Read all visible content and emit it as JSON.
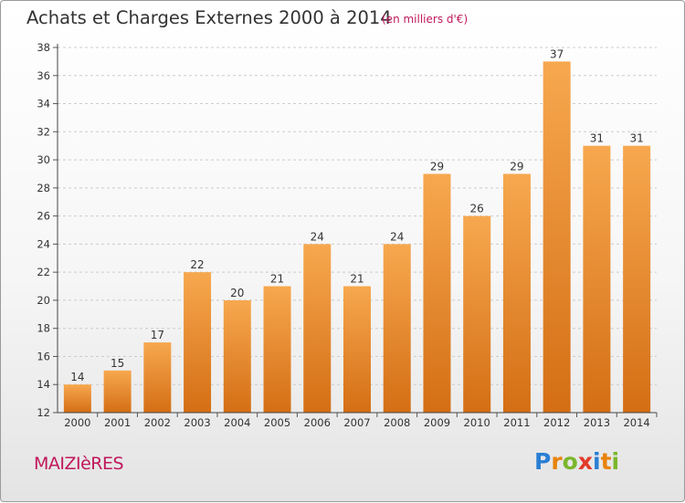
{
  "header": {
    "title": "Achats et Charges Externes 2000 à 2014",
    "subtitle": "(en milliers d'€)"
  },
  "footer": {
    "place": "MAIZIèRES",
    "logo": "Proxiti"
  },
  "colors": {
    "bar_top": "#f7a84f",
    "bar_bottom": "#d46e14",
    "title": "#333333",
    "accent": "#c0185b"
  },
  "chart_data": {
    "type": "bar",
    "categories": [
      "2000",
      "2001",
      "2002",
      "2003",
      "2004",
      "2005",
      "2006",
      "2007",
      "2008",
      "2009",
      "2010",
      "2011",
      "2012",
      "2013",
      "2014"
    ],
    "values": [
      14,
      15,
      17,
      22,
      20,
      21,
      24,
      21,
      24,
      29,
      26,
      29,
      37,
      31,
      31
    ],
    "title": "Achats et Charges Externes 2000 à 2014",
    "subtitle": "(en milliers d'€)",
    "xlabel": "",
    "ylabel": "",
    "ylim": [
      12,
      38
    ],
    "yticks": [
      12,
      14,
      16,
      18,
      20,
      22,
      24,
      26,
      28,
      30,
      32,
      34,
      36,
      38
    ],
    "grid": true,
    "data_labels": true
  }
}
